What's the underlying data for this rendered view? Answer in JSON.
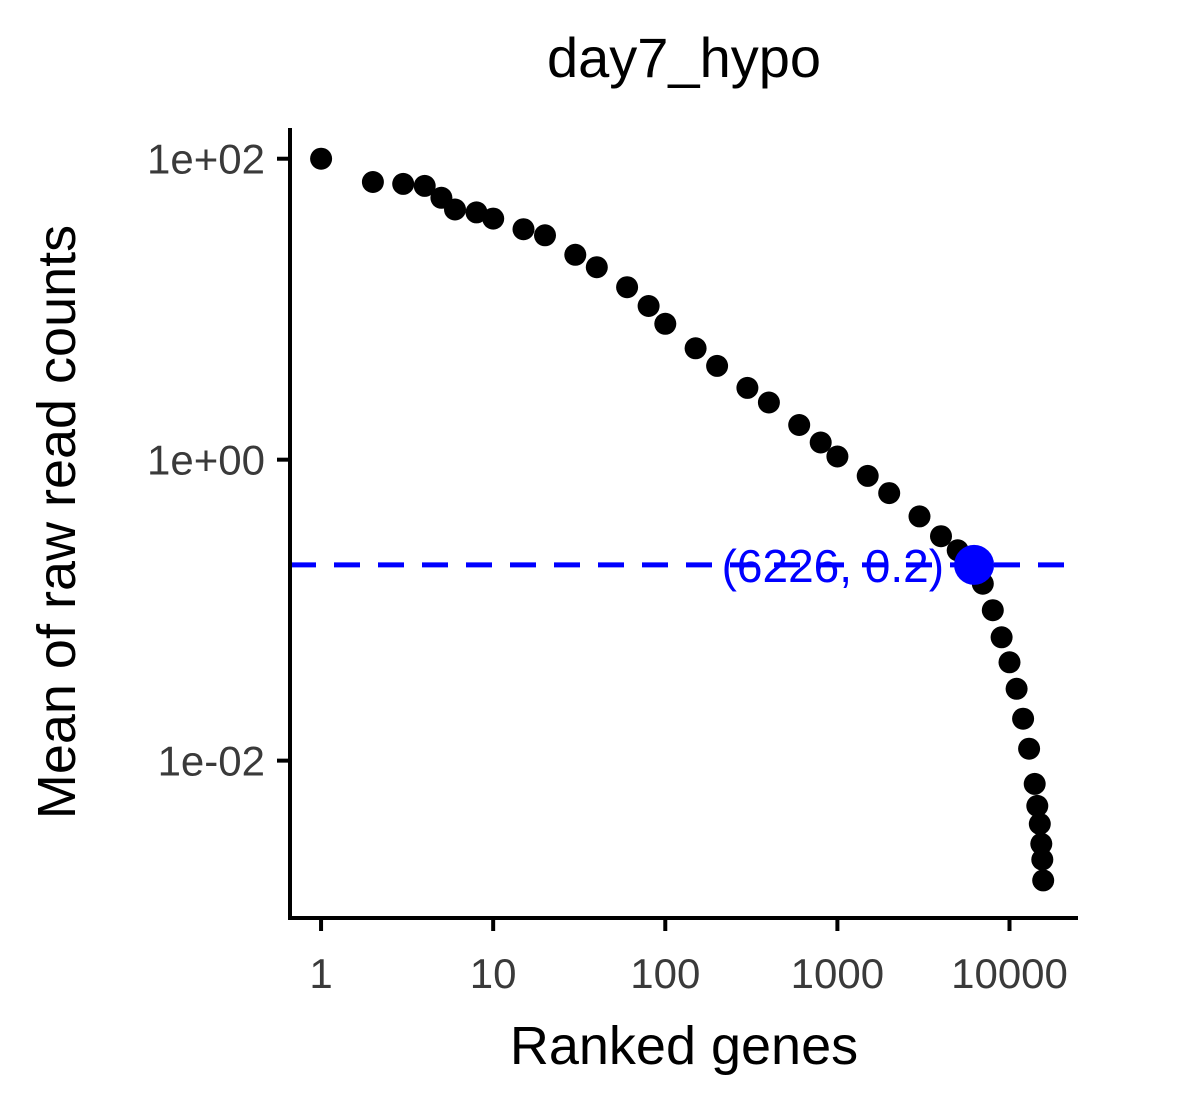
{
  "chart_data": {
    "type": "scatter",
    "title": "day7_hypo",
    "xlabel": "Ranked genes",
    "ylabel": "Mean of raw read counts",
    "x_scale": "log10",
    "y_scale": "log10",
    "xlim": [
      0.66,
      25000
    ],
    "ylim": [
      0.0009,
      160
    ],
    "x_ticks": [
      1,
      10,
      100,
      1000,
      10000
    ],
    "x_tick_labels": [
      "1",
      "10",
      "100",
      "1000",
      "10000"
    ],
    "y_ticks": [
      0.01,
      1,
      100
    ],
    "y_tick_labels": [
      "1e-02",
      "1e+00",
      "1e+02"
    ],
    "point_color": "#000000",
    "series": [
      {
        "x": [
          1,
          2,
          3,
          4,
          5,
          6,
          8,
          10,
          15,
          20,
          30,
          40,
          60,
          80,
          100,
          150,
          200,
          300,
          400,
          600,
          800,
          1000,
          1500,
          2000,
          3000,
          4000,
          5000,
          6226,
          7000,
          8000,
          9000,
          10000,
          11000,
          12000,
          13000,
          14000,
          14500,
          15000,
          15300,
          15500,
          15700
        ],
        "y": [
          100,
          70,
          68,
          66,
          55,
          46,
          44,
          40,
          34,
          31,
          23,
          19,
          14,
          10.5,
          8,
          5.5,
          4.2,
          3.0,
          2.4,
          1.7,
          1.3,
          1.05,
          0.78,
          0.6,
          0.42,
          0.31,
          0.25,
          0.2,
          0.15,
          0.1,
          0.066,
          0.045,
          0.03,
          0.019,
          0.012,
          0.007,
          0.005,
          0.0038,
          0.0028,
          0.0022,
          0.0016
        ]
      }
    ],
    "threshold": {
      "x": 6226,
      "y": 0.2,
      "label": "(6226, 0.2)",
      "color": "#0000ff",
      "line_style": "dashed"
    },
    "grid": false,
    "legend": "none"
  }
}
